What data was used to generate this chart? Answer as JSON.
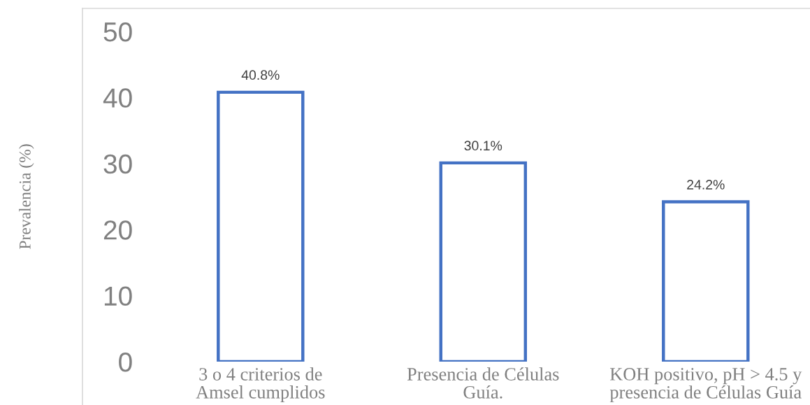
{
  "chart_data": {
    "type": "bar",
    "ylabel": "Prevalencia (%)",
    "categories": [
      "3 o 4 criterios de\nAmsel cumplidos",
      "Presencia de Células\nGuía.",
      "KOH positivo, pH > 4.5 y\npresencia de Células Guía"
    ],
    "values": [
      40.8,
      30.1,
      24.2
    ],
    "value_labels": [
      "40.8%",
      "30.1%",
      "24.2%"
    ],
    "color": "#4472c4",
    "ylim": [
      0,
      50
    ],
    "yticks": [
      0,
      10,
      20,
      30,
      40,
      50
    ],
    "grid": false
  }
}
